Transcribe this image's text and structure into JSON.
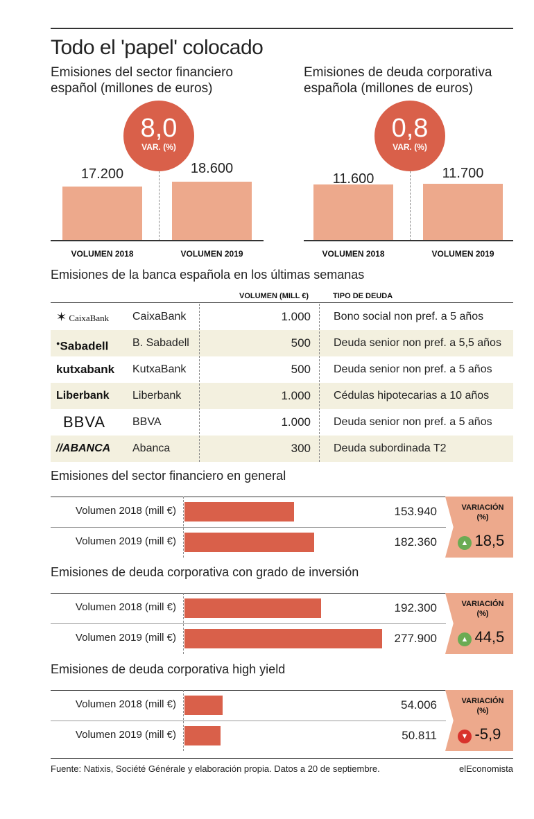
{
  "title": "Todo el 'papel' colocado",
  "chart_data": [
    {
      "type": "bar",
      "title": "Emisiones del sector financiero español (millones de euros)",
      "categories": [
        "VOLUMEN 2018",
        "VOLUMEN 2019"
      ],
      "values": [
        17200,
        18600
      ],
      "value_labels": [
        "17.200",
        "18.600"
      ],
      "variation": "8,0",
      "variation_label": "VAR. (%)"
    },
    {
      "type": "bar",
      "title": "Emisiones de deuda corporativa española (millones de euros)",
      "categories": [
        "VOLUMEN 2018",
        "VOLUMEN 2019"
      ],
      "values": [
        11600,
        11700
      ],
      "value_labels": [
        "11.600",
        "11.700"
      ],
      "variation": "0,8",
      "variation_label": "VAR. (%)"
    },
    {
      "type": "table",
      "title": "Emisiones de la banca española en los últimas semanas",
      "columns": [
        "VOLUMEN (MILL €)",
        "TIPO DE DEUDA"
      ],
      "rows": [
        {
          "logo": "CaixaBank",
          "name": "CaixaBank",
          "volume": "1.000",
          "tipo": "Bono social non pref. a 5 años"
        },
        {
          "logo": "Sabadell",
          "name": "B. Sabadell",
          "volume": "500",
          "tipo": "Deuda senior non pref. a 5,5 años"
        },
        {
          "logo": "kutxabank",
          "name": "KutxaBank",
          "volume": "500",
          "tipo": "Deuda senior non pref. a 5 años"
        },
        {
          "logo": "Liberbank",
          "name": "Liberbank",
          "volume": "1.000",
          "tipo": "Cédulas hipotecarias a 10 años"
        },
        {
          "logo": "BBVA",
          "name": "BBVA",
          "volume": "1.000",
          "tipo": "Deuda senior non pref. a 5 años"
        },
        {
          "logo": "//ABANCA",
          "name": "Abanca",
          "volume": "300",
          "tipo": "Deuda subordinada T2"
        }
      ]
    },
    {
      "type": "bar",
      "orientation": "horizontal",
      "title": "Emisiones del sector financiero en general",
      "categories": [
        "Volumen 2018 (mill €)",
        "Volumen 2019 (mill €)"
      ],
      "values": [
        153940,
        182360
      ],
      "value_labels": [
        "153.940",
        "182.360"
      ],
      "variation_title": "VARIACIÓN",
      "variation_unit": "(%)",
      "variation": "18,5",
      "direction": "up"
    },
    {
      "type": "bar",
      "orientation": "horizontal",
      "title": "Emisiones de deuda corporativa con grado de inversión",
      "categories": [
        "Volumen 2018 (mill €)",
        "Volumen 2019 (mill €)"
      ],
      "values": [
        192300,
        277900
      ],
      "value_labels": [
        "192.300",
        "277.900"
      ],
      "variation_title": "VARIACIÓN",
      "variation_unit": "(%)",
      "variation": "44,5",
      "direction": "up"
    },
    {
      "type": "bar",
      "orientation": "horizontal",
      "title": "Emisiones de deuda corporativa high yield",
      "categories": [
        "Volumen 2018 (mill €)",
        "Volumen 2019 (mill €)"
      ],
      "values": [
        54006,
        50811
      ],
      "value_labels": [
        "54.006",
        "50.811"
      ],
      "variation_title": "VARIACIÓN",
      "variation_unit": "(%)",
      "variation": "-5,9",
      "direction": "down"
    }
  ],
  "footer": {
    "source": "Fuente: Natixis, Société Générale y elaboración propia. Datos a 20 de septiembre.",
    "brand": "elEconomista"
  },
  "colors": {
    "accent": "#d9604a",
    "light_bar": "#eda98c",
    "row_shade": "#f3f0df",
    "up": "#6bab53",
    "down": "#d8322c"
  }
}
